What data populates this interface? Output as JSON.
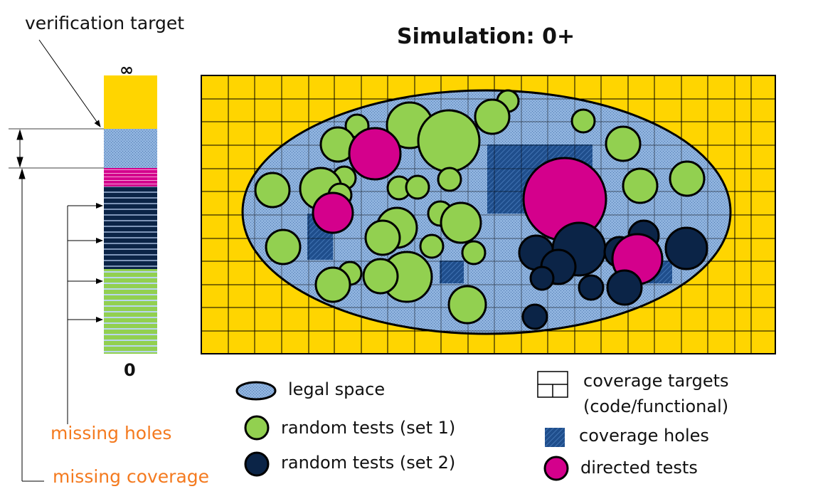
{
  "title": "Simulation: 0+",
  "bar": {
    "top_label": "∞",
    "bottom_label": "0",
    "verification_target_label": "verification target",
    "missing_holes_label": "missing holes",
    "missing_coverage_label": "missing coverage"
  },
  "legend": {
    "legal_space": "legal space",
    "random_tests_1": "random tests (set 1)",
    "random_tests_2": "random tests (set 2)",
    "coverage_targets_line1": "coverage targets",
    "coverage_targets_line2": "(code/functional)",
    "coverage_holes": "coverage holes",
    "directed_tests": "directed tests"
  },
  "colors": {
    "yellow": "#FFD500",
    "legal_space_blue": "#8FB3DE",
    "hole_blue": "#1F4E8C",
    "green": "#92D050",
    "navy": "#0B2447",
    "magenta": "#D4008C",
    "orange": "#F47A1F"
  }
}
